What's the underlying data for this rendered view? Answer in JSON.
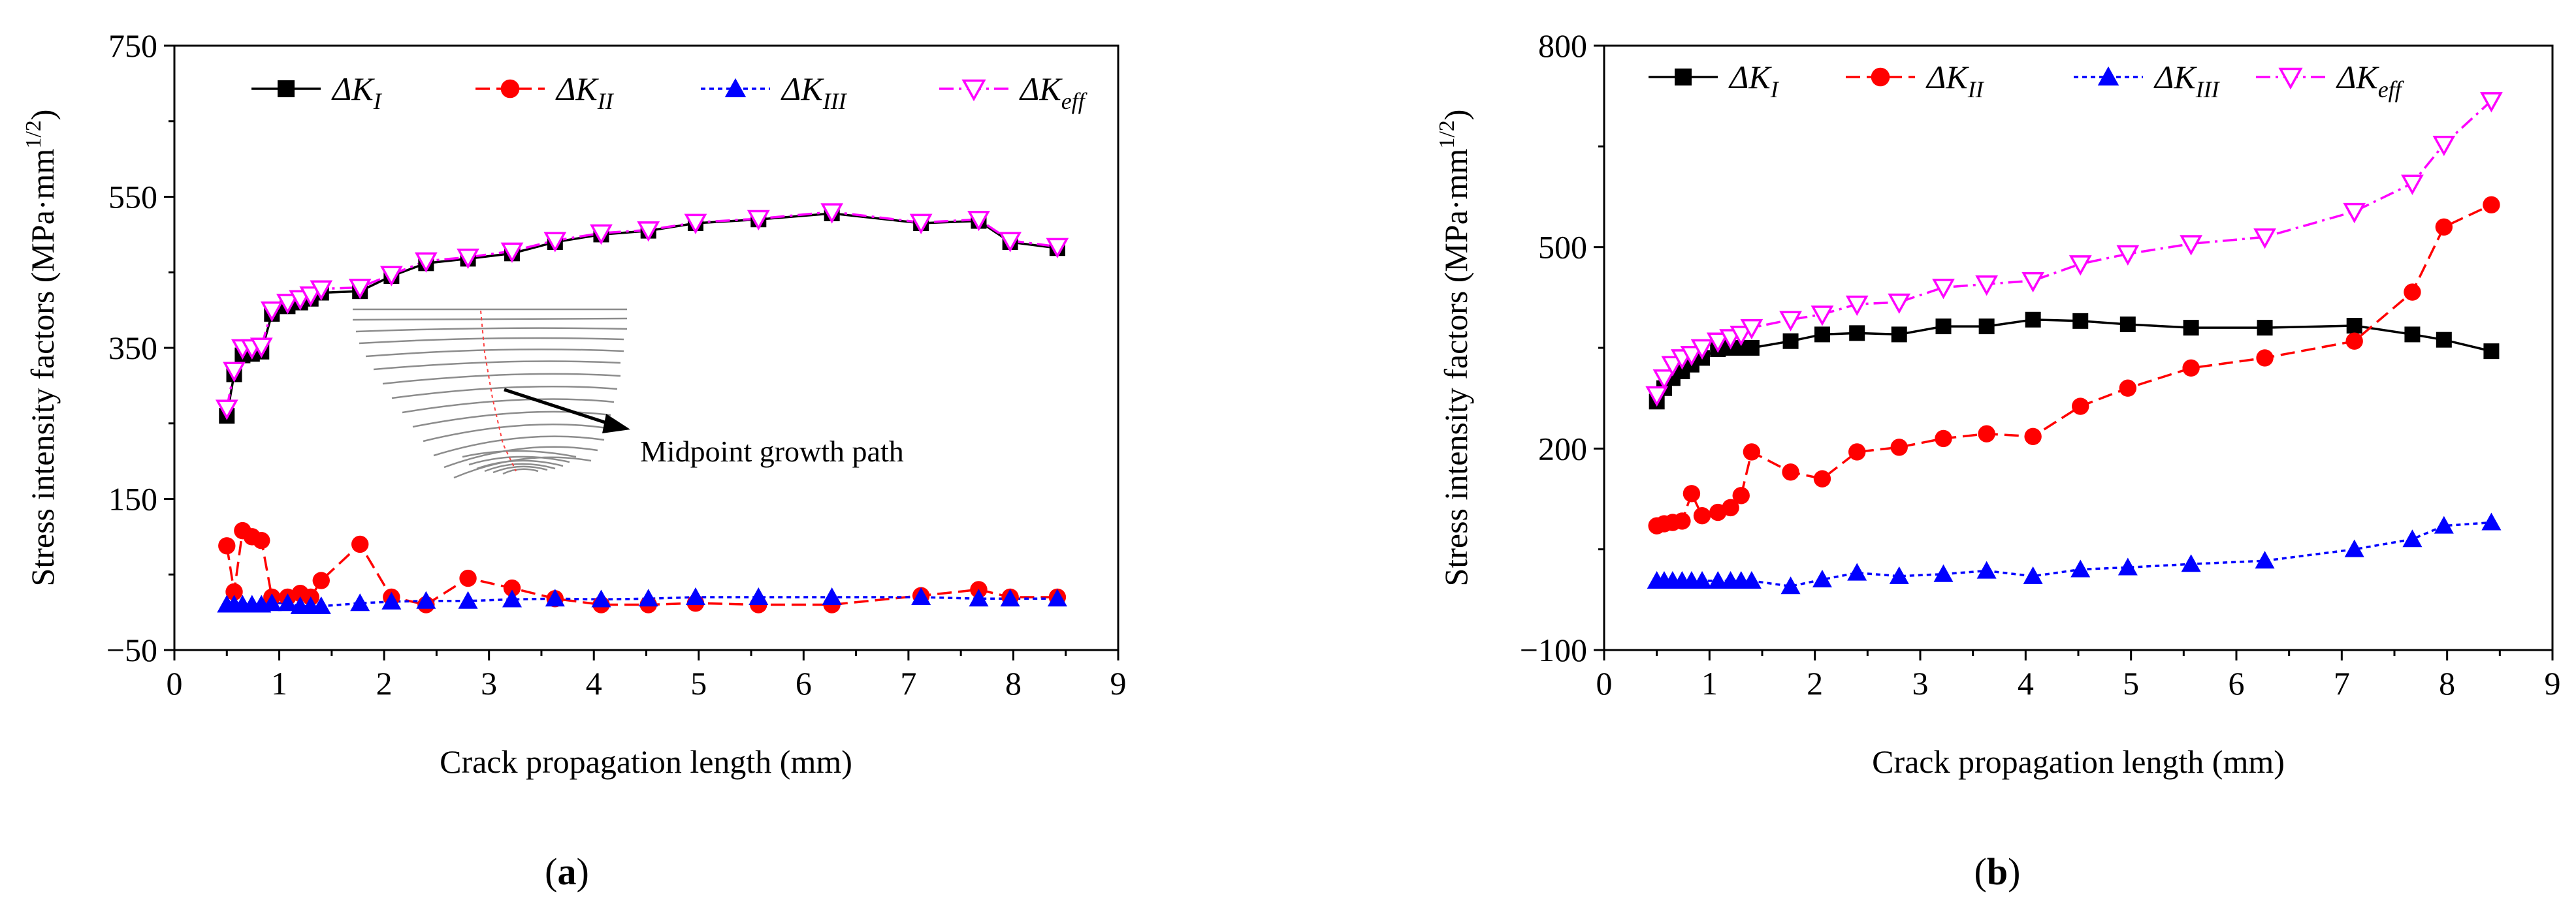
{
  "chart_data": [
    {
      "type": "line",
      "panel": "a",
      "caption_letter": "a",
      "xlabel": "Crack propagation length (mm)",
      "ylabel_main": "Stress intensity factors (MPa·mm",
      "ylabel_sup": "1/2",
      "ylabel_close": ")",
      "xlim": [
        0,
        9
      ],
      "ylim": [
        -50,
        750
      ],
      "xticks": [
        0,
        1,
        2,
        3,
        4,
        5,
        6,
        7,
        8,
        9
      ],
      "yticks": [
        -50,
        150,
        350,
        550,
        750
      ],
      "ytick_labels": [
        "−50",
        "150",
        "350",
        "550",
        "750"
      ],
      "legend_position": "top",
      "annotation": "Midpoint growth path",
      "series": [
        {
          "name": "ΔKI",
          "label_base": "ΔK",
          "label_sub": "I",
          "color": "#000000",
          "marker": "square",
          "dash": "solid",
          "x": [
            0.5,
            0.57,
            0.65,
            0.74,
            0.83,
            0.93,
            1.08,
            1.2,
            1.3,
            1.4,
            1.77,
            2.07,
            2.4,
            2.8,
            3.22,
            3.63,
            4.07,
            4.52,
            4.97,
            5.57,
            6.27,
            7.12,
            7.67,
            7.97,
            8.42
          ],
          "y": [
            260,
            315,
            340,
            342,
            345,
            395,
            405,
            410,
            415,
            423,
            425,
            445,
            462,
            468,
            475,
            490,
            500,
            505,
            515,
            520,
            528,
            515,
            518,
            490,
            482
          ]
        },
        {
          "name": "ΔKII",
          "label_base": "ΔK",
          "label_sub": "II",
          "color": "#ff0000",
          "marker": "circle",
          "dash": "dashed",
          "x": [
            0.5,
            0.57,
            0.65,
            0.74,
            0.83,
            0.93,
            1.08,
            1.2,
            1.3,
            1.4,
            1.77,
            2.07,
            2.4,
            2.8,
            3.22,
            3.63,
            4.07,
            4.52,
            4.97,
            5.57,
            6.27,
            7.12,
            7.67,
            7.97,
            8.42
          ],
          "y": [
            88,
            27,
            108,
            100,
            95,
            20,
            20,
            25,
            20,
            42,
            90,
            20,
            10,
            45,
            32,
            18,
            10,
            10,
            12,
            10,
            10,
            22,
            30,
            20,
            20
          ]
        },
        {
          "name": "ΔKIII",
          "label_base": "ΔK",
          "label_sub": "III",
          "color": "#0000ff",
          "marker": "triangle",
          "dash": "dotted",
          "x": [
            0.5,
            0.57,
            0.65,
            0.74,
            0.83,
            0.93,
            1.08,
            1.2,
            1.3,
            1.4,
            1.77,
            2.07,
            2.4,
            2.8,
            3.22,
            3.63,
            4.07,
            4.52,
            4.97,
            5.57,
            6.27,
            7.12,
            7.67,
            7.97,
            8.42
          ],
          "y": [
            10,
            10,
            10,
            10,
            10,
            12,
            12,
            8,
            8,
            8,
            12,
            14,
            15,
            15,
            17,
            18,
            17,
            18,
            20,
            20,
            20,
            20,
            18,
            18,
            18
          ]
        },
        {
          "name": "ΔKeff",
          "label_base": "ΔK",
          "label_sub": "eff",
          "color": "#ff00ff",
          "marker": "triangle-down-open",
          "dash": "dashdot",
          "x": [
            0.5,
            0.57,
            0.65,
            0.74,
            0.83,
            0.93,
            1.08,
            1.2,
            1.3,
            1.4,
            1.77,
            2.07,
            2.4,
            2.8,
            3.22,
            3.63,
            4.07,
            4.52,
            4.97,
            5.57,
            6.27,
            7.12,
            7.67,
            7.97,
            8.42
          ],
          "y": [
            270,
            320,
            350,
            350,
            352,
            400,
            410,
            415,
            420,
            428,
            430,
            447,
            465,
            470,
            478,
            492,
            502,
            506,
            516,
            521,
            530,
            516,
            520,
            492,
            484
          ]
        }
      ]
    },
    {
      "type": "line",
      "panel": "b",
      "caption_letter": "b",
      "xlabel": "Crack propagation length (mm)",
      "ylabel_main": "Stress intensity factors (MPa·mm",
      "ylabel_sup": "1/2",
      "ylabel_close": ")",
      "xlim": [
        0,
        9
      ],
      "ylim": [
        -100,
        800
      ],
      "xticks": [
        0,
        1,
        2,
        3,
        4,
        5,
        6,
        7,
        8,
        9
      ],
      "yticks": [
        -100,
        200,
        500,
        800
      ],
      "ytick_labels": [
        "−100",
        "200",
        "500",
        "800"
      ],
      "legend_position": "top",
      "series": [
        {
          "name": "ΔKI",
          "label_base": "ΔK",
          "label_sub": "I",
          "color": "#000000",
          "marker": "square",
          "dash": "solid",
          "x": [
            0.5,
            0.57,
            0.65,
            0.74,
            0.83,
            0.93,
            1.08,
            1.2,
            1.3,
            1.4,
            1.77,
            2.07,
            2.4,
            2.8,
            3.22,
            3.63,
            4.07,
            4.52,
            4.97,
            5.57,
            6.27,
            7.12,
            7.67,
            7.97,
            8.42
          ],
          "y": [
            270,
            290,
            305,
            315,
            325,
            335,
            348,
            350,
            350,
            350,
            360,
            370,
            372,
            370,
            382,
            382,
            392,
            390,
            385,
            380,
            380,
            383,
            370,
            362,
            345
          ]
        },
        {
          "name": "ΔKII",
          "label_base": "ΔK",
          "label_sub": "II",
          "color": "#ff0000",
          "marker": "circle",
          "dash": "dashed",
          "x": [
            0.5,
            0.57,
            0.65,
            0.74,
            0.83,
            0.93,
            1.08,
            1.2,
            1.3,
            1.4,
            1.77,
            2.07,
            2.4,
            2.8,
            3.22,
            3.63,
            4.07,
            4.52,
            4.97,
            5.57,
            6.27,
            7.12,
            7.67,
            7.97,
            8.42
          ],
          "y": [
            85,
            88,
            90,
            92,
            133,
            100,
            105,
            112,
            130,
            195,
            165,
            155,
            195,
            202,
            215,
            222,
            218,
            263,
            290,
            320,
            335,
            360,
            433,
            530,
            563
          ]
        },
        {
          "name": "ΔKIII",
          "label_base": "ΔK",
          "label_sub": "III",
          "color": "#0000ff",
          "marker": "triangle",
          "dash": "dotted",
          "x": [
            0.5,
            0.57,
            0.65,
            0.74,
            0.83,
            0.93,
            1.08,
            1.2,
            1.3,
            1.4,
            1.77,
            2.07,
            2.4,
            2.8,
            3.22,
            3.63,
            4.07,
            4.52,
            4.97,
            5.57,
            6.27,
            7.12,
            7.67,
            7.97,
            8.42
          ],
          "y": [
            3,
            3,
            3,
            3,
            3,
            3,
            3,
            3,
            3,
            3,
            -5,
            5,
            15,
            10,
            13,
            18,
            10,
            20,
            23,
            28,
            33,
            50,
            65,
            85,
            90
          ]
        },
        {
          "name": "ΔKeff",
          "label_base": "ΔK",
          "label_sub": "eff",
          "color": "#ff00ff",
          "marker": "triangle-down-open",
          "dash": "dashdot",
          "x": [
            0.5,
            0.57,
            0.65,
            0.74,
            0.83,
            0.93,
            1.08,
            1.2,
            1.3,
            1.4,
            1.77,
            2.07,
            2.4,
            2.8,
            3.22,
            3.63,
            4.07,
            4.52,
            4.97,
            5.57,
            6.27,
            7.12,
            7.67,
            7.97,
            8.42
          ],
          "y": [
            280,
            305,
            325,
            335,
            340,
            350,
            360,
            365,
            370,
            380,
            392,
            400,
            415,
            418,
            440,
            445,
            450,
            475,
            490,
            505,
            515,
            553,
            595,
            653,
            718
          ]
        }
      ]
    }
  ]
}
